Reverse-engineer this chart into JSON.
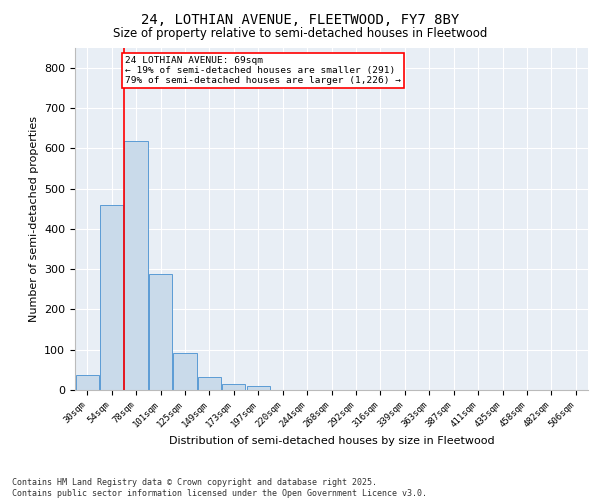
{
  "title1": "24, LOTHIAN AVENUE, FLEETWOOD, FY7 8BY",
  "title2": "Size of property relative to semi-detached houses in Fleetwood",
  "xlabel": "Distribution of semi-detached houses by size in Fleetwood",
  "ylabel": "Number of semi-detached properties",
  "bins": [
    "30sqm",
    "54sqm",
    "78sqm",
    "101sqm",
    "125sqm",
    "149sqm",
    "173sqm",
    "197sqm",
    "220sqm",
    "244sqm",
    "268sqm",
    "292sqm",
    "316sqm",
    "339sqm",
    "363sqm",
    "387sqm",
    "411sqm",
    "435sqm",
    "458sqm",
    "482sqm",
    "506sqm"
  ],
  "values": [
    38,
    460,
    617,
    288,
    93,
    32,
    15,
    9,
    0,
    0,
    0,
    0,
    0,
    0,
    0,
    0,
    0,
    0,
    0,
    0,
    0
  ],
  "bar_color": "#c9daea",
  "bar_edge_color": "#5b9bd5",
  "annotation_title": "24 LOTHIAN AVENUE: 69sqm",
  "annotation_line1": "← 19% of semi-detached houses are smaller (291)",
  "annotation_line2": "79% of semi-detached houses are larger (1,226) →",
  "ylim": [
    0,
    850
  ],
  "yticks": [
    0,
    100,
    200,
    300,
    400,
    500,
    600,
    700,
    800
  ],
  "footer1": "Contains HM Land Registry data © Crown copyright and database right 2025.",
  "footer2": "Contains public sector information licensed under the Open Government Licence v3.0.",
  "plot_bg_color": "#e8eef5"
}
